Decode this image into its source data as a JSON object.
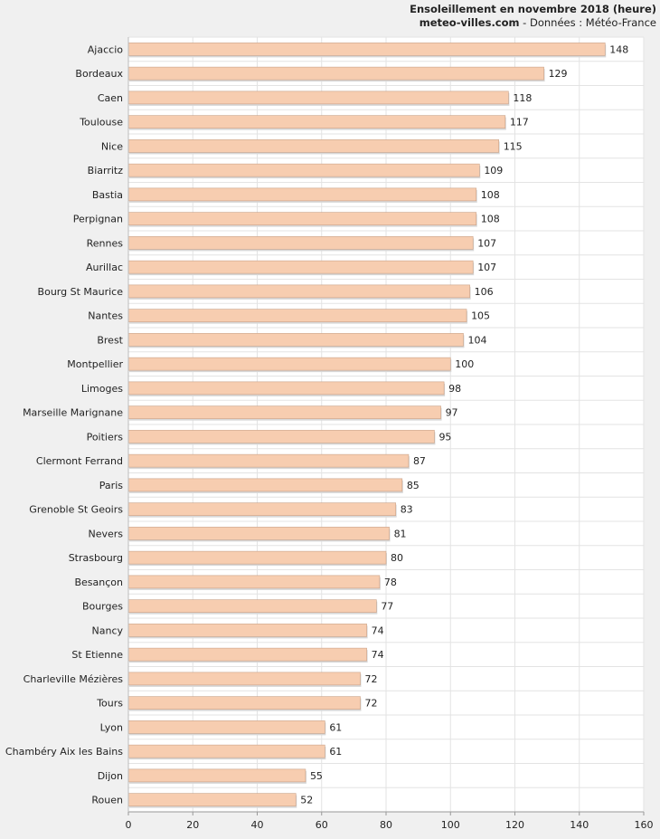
{
  "header": {
    "title": "Ensoleillement en novembre 2018 (heure)",
    "site": "meteo-villes.com",
    "source": " - Données : Météo-France"
  },
  "chart_data": {
    "type": "bar",
    "orientation": "horizontal",
    "categories": [
      "Ajaccio",
      "Bordeaux",
      "Caen",
      "Toulouse",
      "Nice",
      "Biarritz",
      "Bastia",
      "Perpignan",
      "Rennes",
      "Aurillac",
      "Bourg St Maurice",
      "Nantes",
      "Brest",
      "Montpellier",
      "Limoges",
      "Marseille Marignane",
      "Poitiers",
      "Clermont Ferrand",
      "Paris",
      "Grenoble St Geoirs",
      "Nevers",
      "Strasbourg",
      "Besançon",
      "Bourges",
      "Nancy",
      "St Etienne",
      "Charleville Mézières",
      "Tours",
      "Lyon",
      "Chambéry Aix les Bains",
      "Dijon",
      "Rouen"
    ],
    "values": [
      148,
      129,
      118,
      117,
      115,
      109,
      108,
      108,
      107,
      107,
      106,
      105,
      104,
      100,
      98,
      97,
      95,
      87,
      85,
      83,
      81,
      80,
      78,
      77,
      74,
      74,
      72,
      72,
      61,
      61,
      55,
      52
    ],
    "xlim": [
      0,
      160
    ],
    "xticks": [
      0,
      20,
      40,
      60,
      80,
      100,
      120,
      140,
      160
    ],
    "bar_color": "#f7cdb0",
    "bar_edge_color": "#c9a288",
    "grid": true,
    "legend": "none"
  }
}
